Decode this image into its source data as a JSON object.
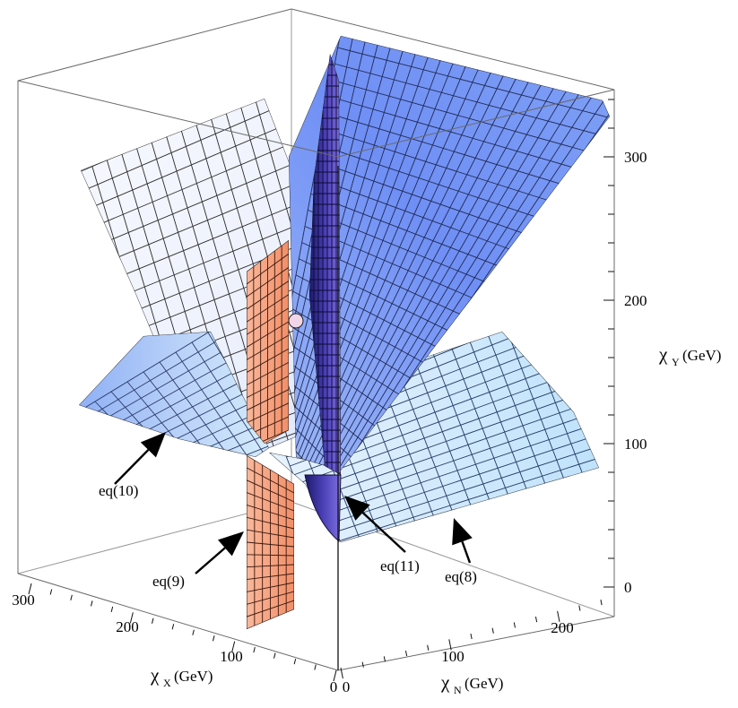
{
  "chart_data": {
    "type": "3d-surface",
    "axes": {
      "x": {
        "symbol": "χ",
        "subscript": "X",
        "unit": "(GeV)",
        "ticks": [
          "300",
          "200",
          "100",
          "0"
        ],
        "range": [
          0,
          300
        ]
      },
      "n": {
        "symbol": "χ",
        "subscript": "N",
        "unit": "(GeV)",
        "ticks": [
          "0",
          "100",
          "200"
        ],
        "range": [
          0,
          250
        ]
      },
      "y": {
        "symbol": "χ",
        "subscript": "Y",
        "unit": "(GeV)",
        "ticks": [
          "0",
          "100",
          "200",
          "300"
        ],
        "range": [
          0,
          340
        ]
      }
    },
    "annotations": [
      {
        "label": "eq(10)"
      },
      {
        "label": "eq(9)"
      },
      {
        "label": "eq(11)"
      },
      {
        "label": "eq(8)"
      }
    ],
    "surfaces": [
      {
        "equation": "eq(8)",
        "color": "#6f8ff5",
        "edge_color": "#f2f6fe"
      },
      {
        "equation": "eq(9)",
        "color": "#f7a37f"
      },
      {
        "equation": "eq(10)",
        "color": "#f4f6fd",
        "edge_color": "#6f94f0"
      },
      {
        "equation": "eq(11)",
        "color": "#3a2f9f"
      }
    ],
    "box": true,
    "grid": true
  }
}
